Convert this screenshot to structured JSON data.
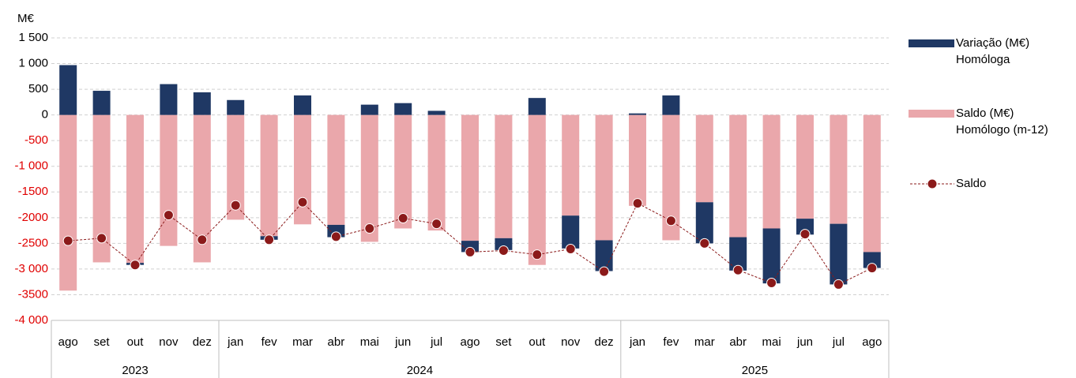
{
  "chart_data": {
    "type": "bar-line",
    "y_label": "M€",
    "categories": [
      "ago",
      "set",
      "out",
      "nov",
      "dez",
      "jan",
      "fev",
      "mar",
      "abr",
      "mai",
      "jun",
      "jul",
      "ago",
      "set",
      "out",
      "nov",
      "dez",
      "jan",
      "fev",
      "mar",
      "abr",
      "mai",
      "jun",
      "jul",
      "ago"
    ],
    "groups": [
      {
        "label": "2023",
        "span": 5
      },
      {
        "label": "2024",
        "span": 12
      },
      {
        "label": "2025",
        "span": 8
      }
    ],
    "series": [
      {
        "name": "Variação (M€) Homóloga",
        "color": "#1f3864",
        "kind": "bar",
        "values": [
          970,
          470,
          -40,
          600,
          440,
          290,
          -70,
          380,
          -240,
          200,
          230,
          80,
          -220,
          -230,
          330,
          -640,
          -600,
          30,
          380,
          -800,
          -650,
          -1070,
          -310,
          -1180,
          -310
        ]
      },
      {
        "name": "Saldo (M€) Homólogo (m-12)",
        "color": "#eaa7ab",
        "kind": "bar",
        "values": [
          -3420,
          -2870,
          -2880,
          -2550,
          -2870,
          -2040,
          -2360,
          -2130,
          -2140,
          -2470,
          -2210,
          -2250,
          -2450,
          -2400,
          -2920,
          -1960,
          -2440,
          -1770,
          -2440,
          -1700,
          -2380,
          -2210,
          -2020,
          -2120,
          -2670
        ]
      },
      {
        "name": "Saldo",
        "color": "#8b1a1a",
        "kind": "line",
        "values": [
          -2450,
          -2400,
          -2920,
          -1950,
          -2430,
          -1760,
          -2430,
          -1700,
          -2370,
          -2210,
          -2010,
          -2120,
          -2670,
          -2640,
          -2720,
          -2610,
          -3050,
          -1720,
          -2060,
          -2500,
          -3020,
          -3270,
          -2320,
          -3300,
          -2980
        ]
      }
    ],
    "ylim": [
      -4000,
      1500
    ],
    "yticks": [
      {
        "value": -4000,
        "label": "-4 000"
      },
      {
        "value": -3500,
        "label": "-3500"
      },
      {
        "value": -3000,
        "label": "-3 000"
      },
      {
        "value": -2500,
        "label": "-2500"
      },
      {
        "value": -2000,
        "label": "-2000"
      },
      {
        "value": -1500,
        "label": "-1500"
      },
      {
        "value": -1000,
        "label": "-1 000"
      },
      -500,
      0,
      500,
      {
        "value": 1000,
        "label": "1 000"
      },
      {
        "value": 1500,
        "label": "1 500"
      }
    ],
    "negative_tick_color": "#e00000",
    "grid": true
  }
}
